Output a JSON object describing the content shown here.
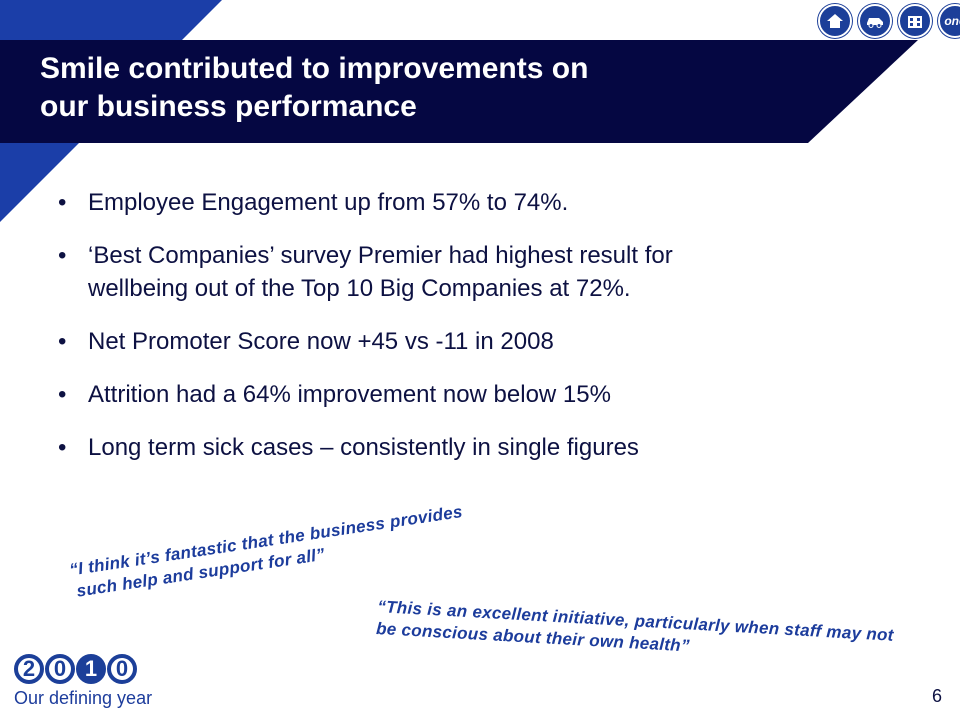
{
  "colors": {
    "title_band": "#050742",
    "accent_blue": "#1c3f99",
    "text_dark": "#0d1142",
    "quote_blue": "#1c3c9c"
  },
  "slide": {
    "title_lines": [
      "Smile contributed to improvements on",
      "our business performance"
    ],
    "bullets": [
      {
        "lines": [
          "Employee Engagement up from 57% to 74%."
        ]
      },
      {
        "lines": [
          "‘Best Companies’ survey Premier had highest result for",
          "wellbeing out of the Top 10 Big Companies at 72%."
        ]
      },
      {
        "lines": [
          "Net Promoter Score now +45 vs -11 in 2008"
        ]
      },
      {
        "lines": [
          "Attrition had a 64% improvement now below 15%"
        ]
      },
      {
        "lines": [
          "Long term sick cases – consistently in single figures"
        ]
      }
    ],
    "bullet_symbol": "•",
    "quotes": [
      {
        "lines": [
          "“I think it’s fantastic that the business provides",
          "such help and support for all”"
        ]
      },
      {
        "lines": [
          "“This is an excellent initiative, particularly when staff may not",
          "be conscious about their own health”"
        ]
      }
    ],
    "page_number": "6"
  },
  "nav_icons": [
    "home-icon",
    "car-icon",
    "building-icon",
    "one-logo-icon"
  ],
  "one_logo_text": "one",
  "logo": {
    "digits": [
      "2",
      "0",
      "1",
      "0"
    ],
    "caption": "Our defining year"
  }
}
